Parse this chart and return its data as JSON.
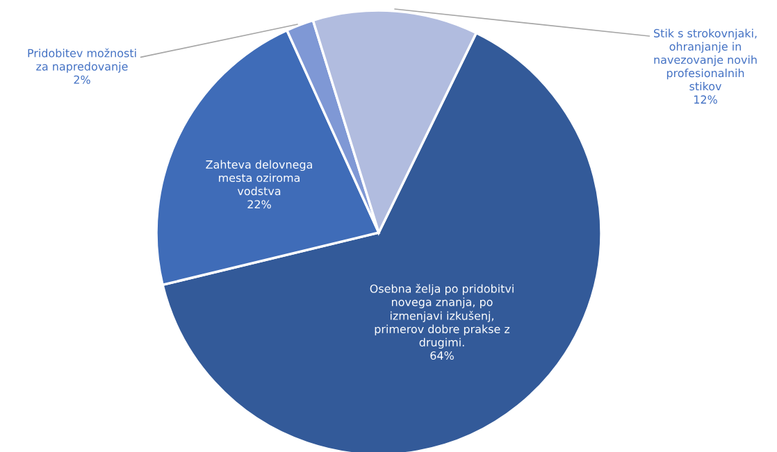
{
  "chart_data": {
    "type": "pie",
    "categories": [
      "Osebna želja po pridobitvi\nnovega znanja, po\nizmenjavi izkušenj,\nprimerov dobre prakse z\ndrugimi.",
      "Zahteva delovnega\nmesta oziroma\nvodstva",
      "Pridobitev možnosti\nza napredovanje",
      "Stik s strokovnjaki,\nohranjanje in\nnavezovanje novih\nprofesionalnih\nstikov"
    ],
    "values": [
      64,
      22,
      2,
      12
    ],
    "value_labels": [
      "64%",
      "22%",
      "2%",
      "12%"
    ],
    "colors": [
      "#335a99",
      "#3f6cb8",
      "#7f98d5",
      "#b1bcdf"
    ]
  }
}
